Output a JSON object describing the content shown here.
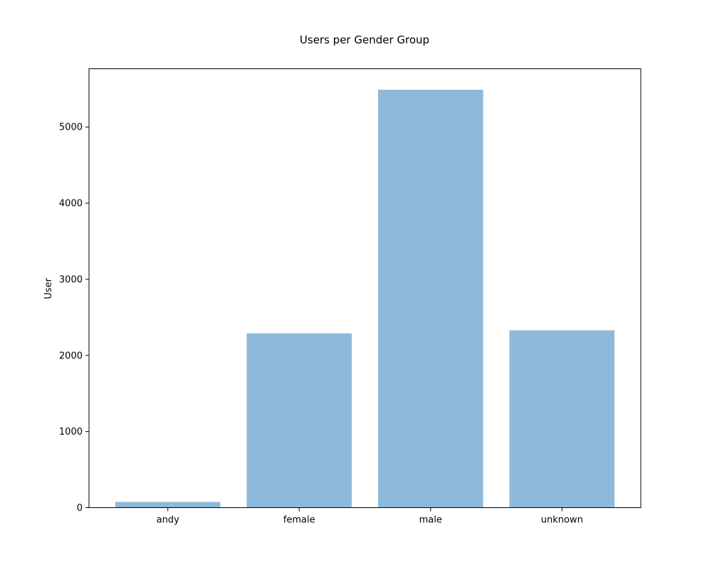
{
  "chart_data": {
    "type": "bar",
    "title": "Users per Gender Group",
    "xlabel": "",
    "ylabel": "User",
    "categories": [
      "andy",
      "female",
      "male",
      "unknown"
    ],
    "values": [
      75,
      2290,
      5490,
      2330
    ],
    "ylim": [
      0,
      5765
    ],
    "yticks": [
      0,
      1000,
      2000,
      3000,
      4000,
      5000
    ],
    "grid": false,
    "legend": "none",
    "bar_color": "#8fb9da",
    "axis_color": "#000000"
  }
}
